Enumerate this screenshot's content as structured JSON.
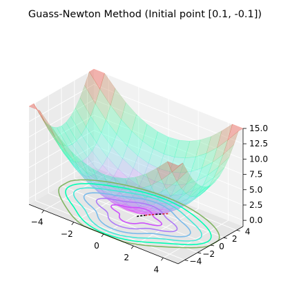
{
  "chart_data": {
    "type": "surface3d",
    "title": "Guass-Newton Method (Initial point [0.1, -0.1])",
    "surface_colormap": "rainbow",
    "contour_colormap": "rainbow",
    "x_axis": {
      "range": [
        -5,
        5
      ],
      "ticks": [
        -4,
        -2,
        0,
        2,
        4
      ],
      "tick_labels": [
        "−4",
        "−2",
        "0",
        "2",
        "4"
      ]
    },
    "y_axis": {
      "range": [
        -5,
        5
      ],
      "ticks": [
        -4,
        -2,
        0,
        2,
        4
      ],
      "tick_labels": [
        "−4",
        "−2",
        "0",
        "2",
        "4"
      ]
    },
    "z_axis": {
      "range": [
        -1,
        15
      ],
      "ticks": [
        0,
        2.5,
        5,
        7.5,
        10,
        12.5,
        15
      ],
      "tick_labels": [
        "0.0",
        "2.5",
        "5.0",
        "7.5",
        "10.0",
        "12.5",
        "15.0"
      ]
    },
    "path_points": [
      [
        0.1,
        -0.1
      ],
      [
        0.35,
        0.6
      ],
      [
        0.7,
        1.4
      ],
      [
        0.95,
        1.9
      ],
      [
        1.2,
        2.4
      ]
    ],
    "path_colors": [
      "#000000",
      "#d62728"
    ],
    "grid": true
  }
}
